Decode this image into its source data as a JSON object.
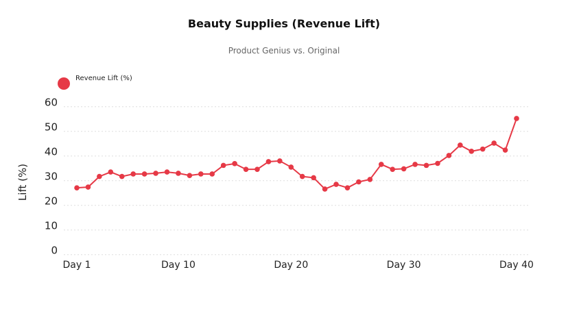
{
  "chart_data": {
    "type": "line",
    "title": "Beauty Supplies (Revenue Lift)",
    "subtitle": "Product Genius vs. Original",
    "xlabel": "",
    "ylabel": "Lift (%)",
    "ylim": [
      0,
      60
    ],
    "yticks": [
      "0",
      "10",
      "20",
      "30",
      "40",
      "50",
      "60"
    ],
    "xtick_labels": [
      "Day 1",
      "Day 10",
      "Day 20",
      "Day 30",
      "Day 40"
    ],
    "xtick_days": [
      1,
      10,
      20,
      30,
      40
    ],
    "grid": true,
    "legend_position": "top-left",
    "series_color": "#e63946",
    "series": [
      {
        "name": "Revenue Lift (%)",
        "x": [
          1,
          2,
          3,
          4,
          5,
          6,
          7,
          8,
          9,
          10,
          11,
          12,
          13,
          14,
          15,
          16,
          17,
          18,
          19,
          20,
          21,
          22,
          23,
          24,
          25,
          26,
          27,
          28,
          29,
          30,
          31,
          32,
          33,
          34,
          35,
          36,
          37,
          38,
          39,
          40
        ],
        "values": [
          27.1,
          27.4,
          31.7,
          33.5,
          31.7,
          32.7,
          32.7,
          33.0,
          33.5,
          33.0,
          32.1,
          32.7,
          32.7,
          36.2,
          36.9,
          34.6,
          34.6,
          37.7,
          38.0,
          35.5,
          31.7,
          31.2,
          26.6,
          28.5,
          27.1,
          29.5,
          30.5,
          36.6,
          34.6,
          34.8,
          36.6,
          36.2,
          37.0,
          40.2,
          44.4,
          41.9,
          42.8,
          45.2,
          42.4,
          55.2
        ]
      }
    ]
  }
}
